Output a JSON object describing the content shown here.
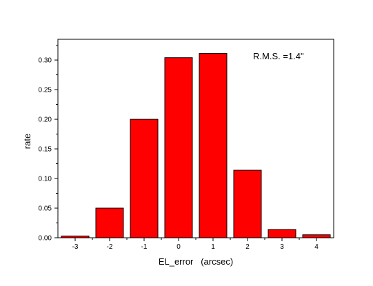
{
  "chart_data": {
    "type": "bar",
    "categories": [
      "-3",
      "-2",
      "-1",
      "0",
      "1",
      "2",
      "3",
      "4"
    ],
    "x": [
      -3,
      -2,
      -1,
      0,
      1,
      2,
      3,
      4
    ],
    "values": [
      0.003,
      0.05,
      0.2,
      0.304,
      0.311,
      0.114,
      0.014,
      0.005
    ],
    "xlabel": "EL_error   (arcsec)",
    "ylabel": "rate",
    "xlim": [
      -3.5,
      4.5
    ],
    "ylim": [
      0,
      0.335
    ],
    "yticks": [
      "0.00",
      "0.05",
      "0.10",
      "0.15",
      "0.20",
      "0.25",
      "0.30"
    ],
    "ytick_values": [
      0,
      0.05,
      0.1,
      0.15,
      0.2,
      0.25,
      0.3
    ],
    "annotation": "R.M.S. =1.4\"",
    "grid": false,
    "colors": {
      "bar_fill": "#ff0000",
      "bar_stroke": "#000000",
      "axis": "#000000"
    }
  }
}
